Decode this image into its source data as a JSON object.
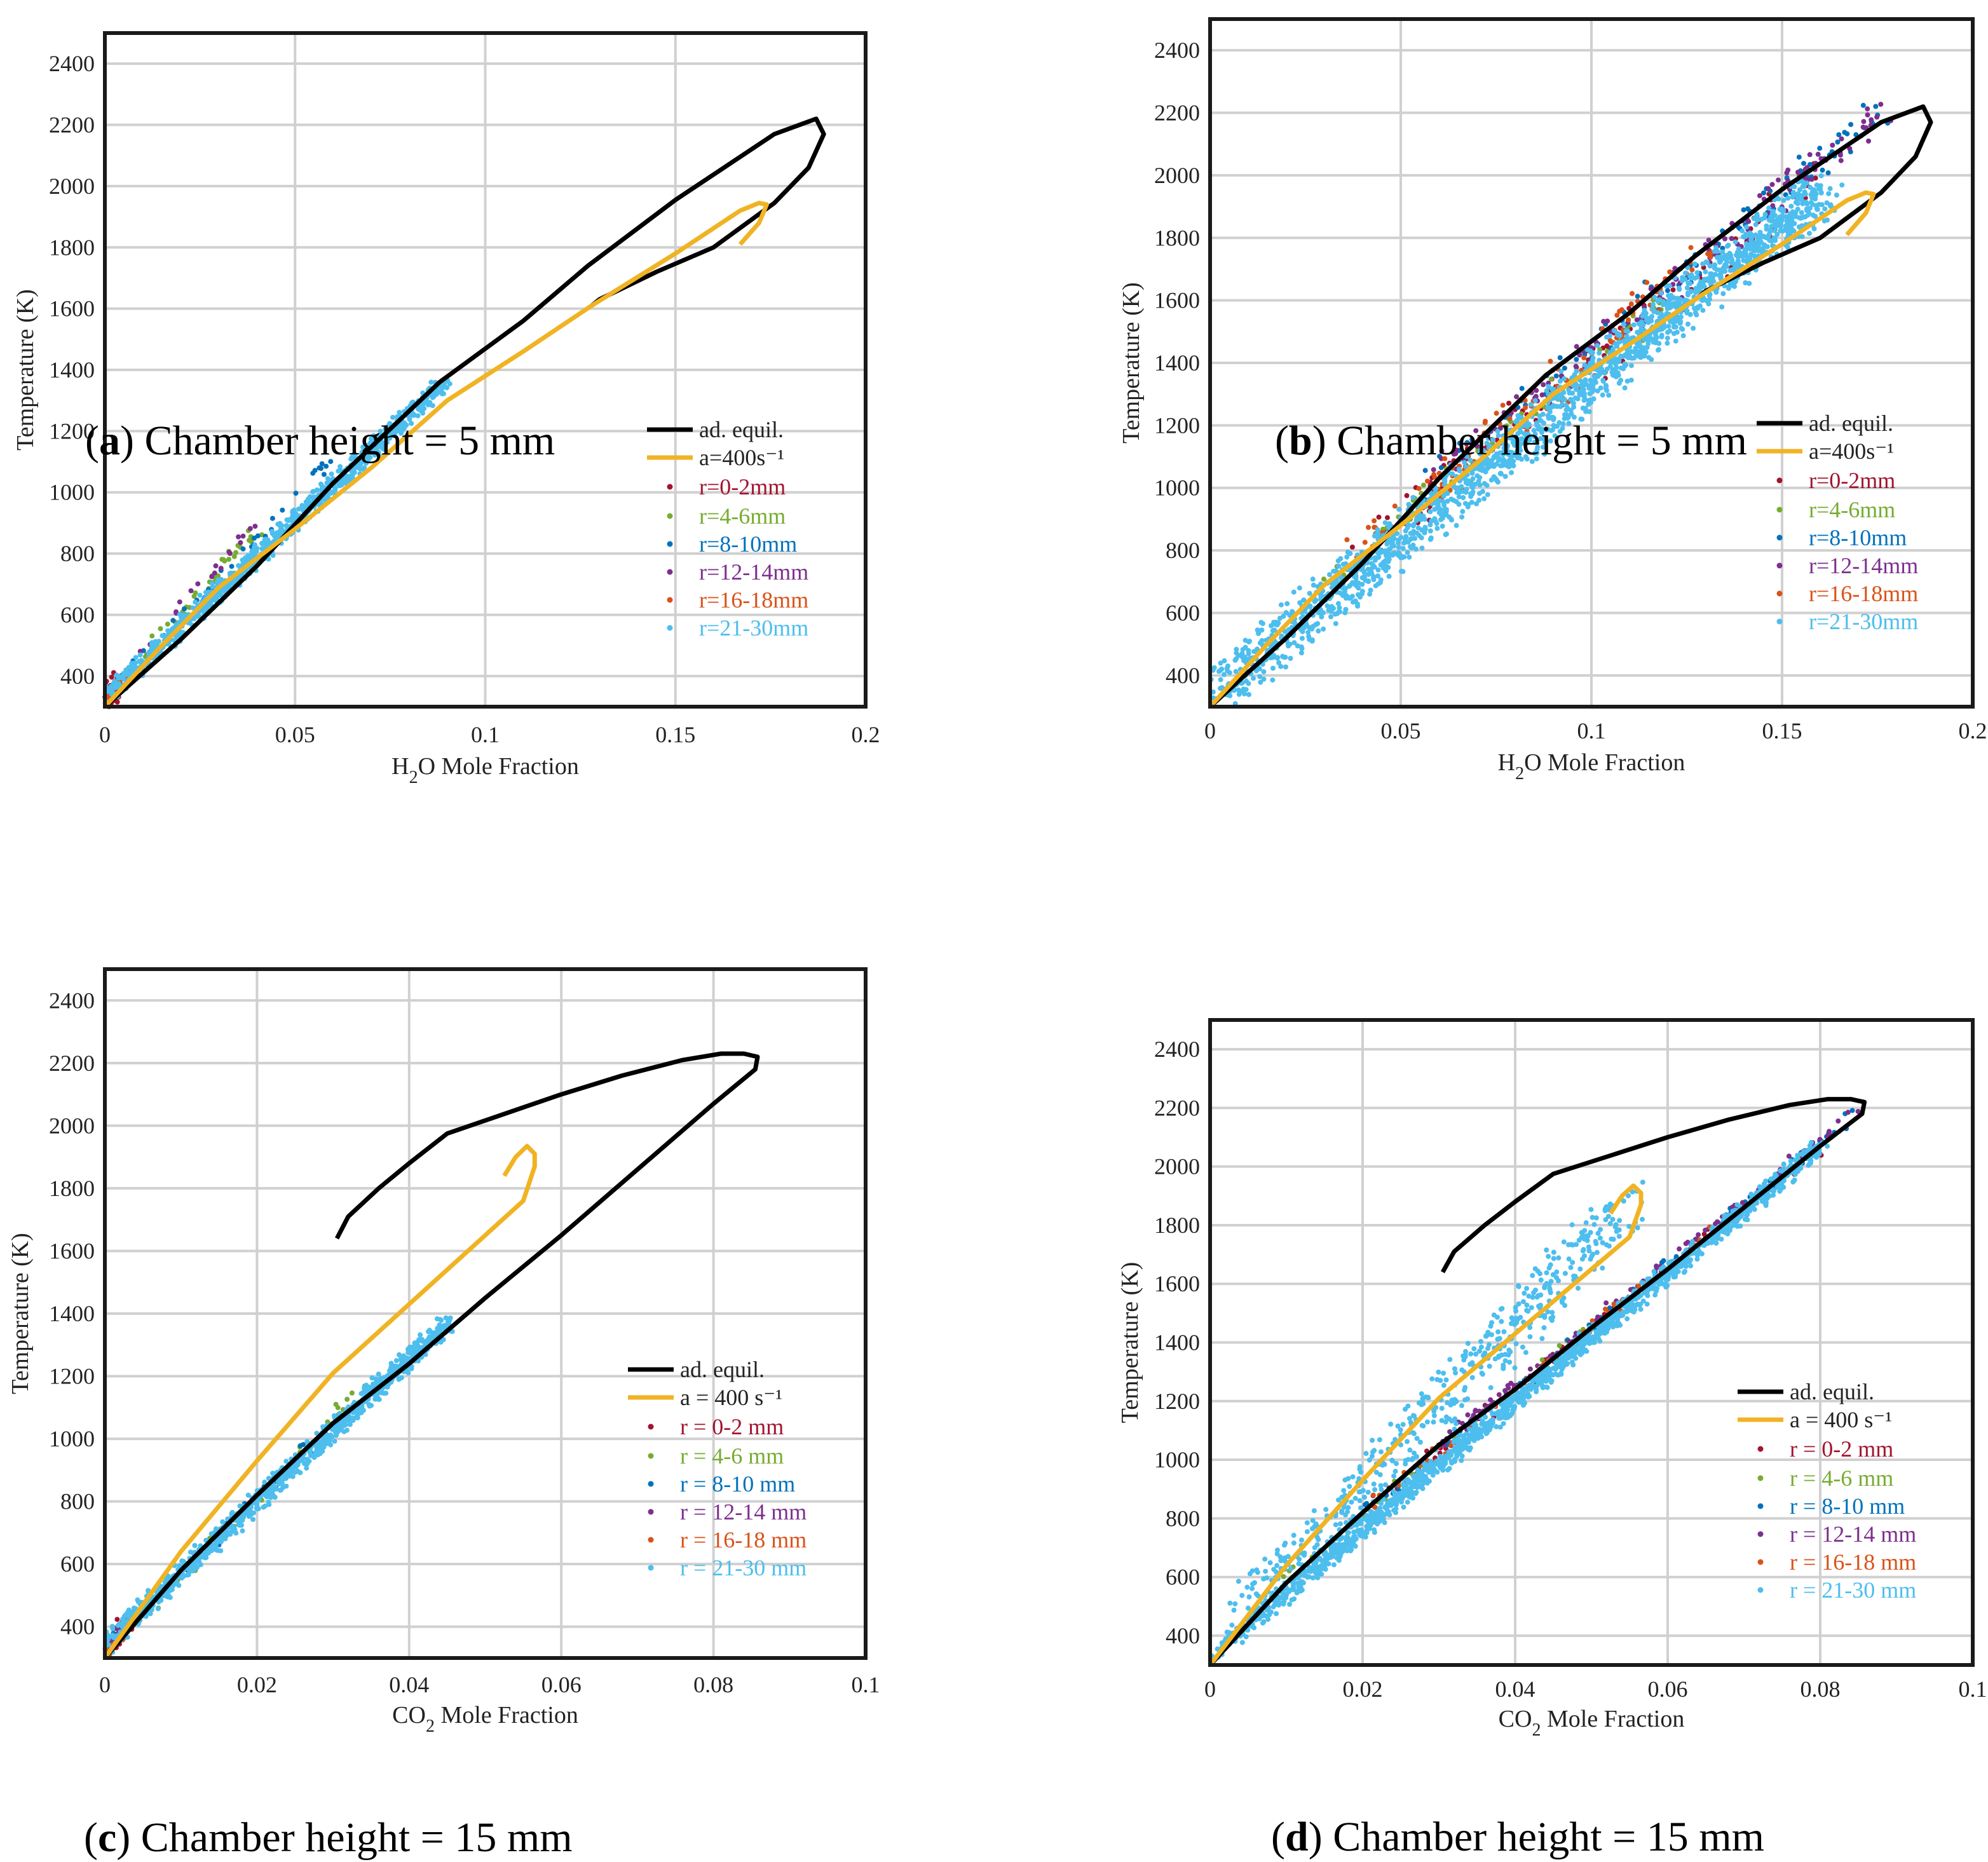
{
  "chart_data": [
    {
      "id": "a",
      "type": "scatter",
      "caption_letter": "a",
      "caption_text": "Chamber height = 5 mm",
      "xlabel_pre": "H",
      "xlabel_sub": "2",
      "xlabel_post": "O Mole Fraction",
      "ylabel": "Temperature (K)",
      "xlim": [
        0,
        0.2
      ],
      "ylim": [
        300,
        2500
      ],
      "xticks": [
        0,
        0.05,
        0.1,
        0.15,
        0.2
      ],
      "xtick_labels": [
        "0",
        "0.05",
        "0.1",
        "0.15",
        "0.2"
      ],
      "yticks": [
        400,
        600,
        800,
        1000,
        1200,
        1400,
        1600,
        1800,
        2000,
        2200,
        2400
      ],
      "ytick_labels": [
        "400",
        "600",
        "800",
        "1000",
        "1200",
        "1400",
        "1600",
        "1800",
        "2000",
        "2200",
        "2400"
      ],
      "legend": [
        "ad. equil.",
        "a=400s⁻¹",
        "r=0-2mm",
        "r=4-6mm",
        "r=8-10mm",
        "r=12-14mm",
        "r=16-18mm",
        "r=21-30mm"
      ],
      "legend_position": "right-middle",
      "lines": [
        {
          "name": "ad. equil.",
          "color": "#000000",
          "x": [
            0,
            0.02,
            0.04,
            0.06,
            0.088,
            0.11,
            0.127,
            0.15,
            0.176,
            0.187,
            0.189,
            0.185,
            0.176,
            0.16,
            0.145,
            0.13,
            0.128
          ],
          "y": [
            300,
            520,
            760,
            1030,
            1360,
            1560,
            1740,
            1955,
            2170,
            2220,
            2170,
            2060,
            1945,
            1800,
            1720,
            1630,
            1610
          ]
        },
        {
          "name": "a=400s⁻¹",
          "color": "#f0b323",
          "x": [
            0,
            0.015,
            0.03,
            0.05,
            0.07,
            0.09,
            0.11,
            0.128,
            0.15,
            0.167,
            0.172,
            0.174,
            0.172,
            0.167
          ],
          "y": [
            300,
            500,
            690,
            880,
            1080,
            1300,
            1460,
            1610,
            1780,
            1920,
            1945,
            1940,
            1880,
            1810
          ]
        }
      ],
      "scatter_clouds": [
        {
          "name": "r=0-2mm",
          "color": "#a2142f",
          "x0": 0,
          "x1": 0.004,
          "y0": 300,
          "y1": 400,
          "slope": 0,
          "spread": 0.002,
          "count": 40
        },
        {
          "name": "r=4-6mm",
          "color": "#77ac30",
          "x0": 0.005,
          "x1": 0.04,
          "y0": 400,
          "y1": 880,
          "slope": 0,
          "spread": 0.0015,
          "count": 40
        },
        {
          "name": "r=8-10mm",
          "color": "#0072bd",
          "x0": 0,
          "x1": 0.06,
          "y0": 330,
          "y1": 1110,
          "slope": 0,
          "spread": 0.0012,
          "count": 40
        },
        {
          "name": "r=12-14mm",
          "color": "#7e2f8e",
          "x0": 0,
          "x1": 0.04,
          "y0": 340,
          "y1": 900,
          "slope": 0,
          "spread": 0.0012,
          "count": 20
        },
        {
          "name": "r=16-18mm",
          "color": "#d95319",
          "x0": 0,
          "x1": 0.006,
          "y0": 320,
          "y1": 400,
          "slope": 0,
          "spread": 0.001,
          "count": 20
        },
        {
          "name": "r=21-30mm",
          "color": "#4dbeee",
          "x0": 0,
          "x1": 0.089,
          "y0": 330,
          "y1": 1355,
          "slope": 0,
          "spread": 0.0022,
          "count": 900
        }
      ]
    },
    {
      "id": "b",
      "type": "scatter",
      "caption_letter": "b",
      "caption_text": "Chamber height = 5 mm",
      "xlabel_pre": "H",
      "xlabel_sub": "2",
      "xlabel_post": "O Mole Fraction",
      "ylabel": "Temperature (K)",
      "xlim": [
        0,
        0.2
      ],
      "ylim": [
        300,
        2500
      ],
      "xticks": [
        0,
        0.05,
        0.1,
        0.15,
        0.2
      ],
      "xtick_labels": [
        "0",
        "0.05",
        "0.1",
        "0.15",
        "0.2"
      ],
      "yticks": [
        400,
        600,
        800,
        1000,
        1200,
        1400,
        1600,
        1800,
        2000,
        2200,
        2400
      ],
      "ytick_labels": [
        "400",
        "600",
        "800",
        "1000",
        "1200",
        "1400",
        "1600",
        "1800",
        "2000",
        "2200",
        "2400"
      ],
      "legend": [
        "ad. equil.",
        "a=400s⁻¹",
        "r=0-2mm",
        "r=4-6mm",
        "r=8-10mm",
        "r=12-14mm",
        "r=16-18mm",
        "r=21-30mm"
      ],
      "legend_position": "right-middle",
      "lines": [
        {
          "name": "ad. equil.",
          "color": "#000000",
          "x": [
            0,
            0.02,
            0.04,
            0.06,
            0.088,
            0.11,
            0.127,
            0.15,
            0.176,
            0.187,
            0.189,
            0.185,
            0.176,
            0.16,
            0.145,
            0.13,
            0.128
          ],
          "y": [
            300,
            520,
            760,
            1030,
            1360,
            1560,
            1740,
            1955,
            2170,
            2220,
            2170,
            2060,
            1945,
            1800,
            1720,
            1630,
            1610
          ]
        },
        {
          "name": "a=400s⁻¹",
          "color": "#f0b323",
          "x": [
            0,
            0.015,
            0.03,
            0.05,
            0.07,
            0.09,
            0.11,
            0.128,
            0.15,
            0.167,
            0.172,
            0.174,
            0.172,
            0.167
          ],
          "y": [
            300,
            500,
            690,
            880,
            1080,
            1300,
            1460,
            1610,
            1780,
            1920,
            1945,
            1940,
            1880,
            1810
          ]
        }
      ],
      "scatter_clouds": [
        {
          "name": "r=0-2mm",
          "color": "#a2142f",
          "x0": 0.04,
          "x1": 0.16,
          "y0": 800,
          "y1": 2000,
          "slope": 0,
          "spread": 0.005,
          "count": 120
        },
        {
          "name": "r=4-6mm",
          "color": "#77ac30",
          "x0": 0.03,
          "x1": 0.12,
          "y0": 700,
          "y1": 1600,
          "slope": 0,
          "spread": 0.004,
          "count": 60
        },
        {
          "name": "r=8-10mm",
          "color": "#0072bd",
          "x0": 0.05,
          "x1": 0.175,
          "y0": 950,
          "y1": 2200,
          "slope": 0,
          "spread": 0.004,
          "count": 110
        },
        {
          "name": "r=12-14mm",
          "color": "#7e2f8e",
          "x0": 0.06,
          "x1": 0.178,
          "y0": 1050,
          "y1": 2220,
          "slope": 0,
          "spread": 0.004,
          "count": 150
        },
        {
          "name": "r=16-18mm",
          "color": "#d95319",
          "x0": 0.04,
          "x1": 0.13,
          "y0": 800,
          "y1": 1750,
          "slope": 0,
          "spread": 0.005,
          "count": 110
        },
        {
          "name": "r=21-30mm",
          "color": "#4dbeee",
          "x0": 0,
          "x1": 0.16,
          "y0": 330,
          "y1": 1950,
          "slope": 0,
          "spread": 0.006,
          "count": 1800
        }
      ]
    },
    {
      "id": "c",
      "type": "scatter",
      "caption_letter": "c",
      "caption_text": "Chamber height = 15 mm",
      "xlabel_pre": "CO",
      "xlabel_sub": "2",
      "xlabel_post": " Mole Fraction",
      "ylabel": "Temperature (K)",
      "xlim": [
        0,
        0.1
      ],
      "ylim": [
        300,
        2500
      ],
      "xticks": [
        0,
        0.02,
        0.04,
        0.06,
        0.08,
        0.1
      ],
      "xtick_labels": [
        "0",
        "0.02",
        "0.04",
        "0.06",
        "0.08",
        "0.1"
      ],
      "yticks": [
        400,
        600,
        800,
        1000,
        1200,
        1400,
        1600,
        1800,
        2000,
        2200,
        2400
      ],
      "ytick_labels": [
        "400",
        "600",
        "800",
        "1000",
        "1200",
        "1400",
        "1600",
        "1800",
        "2000",
        "2200",
        "2400"
      ],
      "legend": [
        "ad. equil.",
        "a = 400 s⁻¹",
        "r = 0-2 mm",
        "r = 4-6 mm",
        "r = 8-10 mm",
        "r = 12-14 mm",
        "r = 16-18 mm",
        "r = 21-30 mm"
      ],
      "legend_position": "right-middle",
      "lines": [
        {
          "name": "ad. equil.",
          "color": "#000000",
          "x": [
            0,
            0.01,
            0.02,
            0.03,
            0.04,
            0.05,
            0.06,
            0.07,
            0.08,
            0.0855,
            0.0858,
            0.084,
            0.081,
            0.076,
            0.068,
            0.06,
            0.054,
            0.045,
            0.04,
            0.036,
            0.032,
            0.0305
          ],
          "y": [
            300,
            580,
            820,
            1050,
            1240,
            1450,
            1650,
            1860,
            2070,
            2180,
            2220,
            2230,
            2230,
            2210,
            2160,
            2100,
            2050,
            1975,
            1880,
            1800,
            1710,
            1640
          ]
        },
        {
          "name": "a = 400 s⁻¹",
          "color": "#f0b323",
          "x": [
            0,
            0.01,
            0.02,
            0.03,
            0.04,
            0.05,
            0.055,
            0.0565,
            0.0565,
            0.0555,
            0.054,
            0.0525
          ],
          "y": [
            300,
            640,
            930,
            1210,
            1430,
            1650,
            1760,
            1870,
            1910,
            1935,
            1900,
            1840
          ]
        }
      ],
      "scatter_clouds": [
        {
          "name": "r = 0-2 mm",
          "color": "#a2142f",
          "x0": 0,
          "x1": 0.003,
          "y0": 320,
          "y1": 420,
          "slope": 0,
          "spread": 0.001,
          "count": 30
        },
        {
          "name": "r = 4-6 mm",
          "color": "#77ac30",
          "x0": 0.005,
          "x1": 0.035,
          "y0": 430,
          "y1": 1200,
          "slope": 0,
          "spread": 0.0008,
          "count": 30
        },
        {
          "name": "r = 8-10 mm",
          "color": "#0072bd",
          "x0": 0,
          "x1": 0.03,
          "y0": 330,
          "y1": 1050,
          "slope": 0,
          "spread": 0.0007,
          "count": 30
        },
        {
          "name": "r = 12-14 mm",
          "color": "#7e2f8e",
          "x0": 0,
          "x1": 0.004,
          "y0": 320,
          "y1": 430,
          "slope": 0,
          "spread": 0.0006,
          "count": 20
        },
        {
          "name": "r = 16-18 mm",
          "color": "#d95319",
          "x0": 0,
          "x1": 0.004,
          "y0": 320,
          "y1": 430,
          "slope": 0,
          "spread": 0.0006,
          "count": 20
        },
        {
          "name": "r = 21-30 mm",
          "color": "#4dbeee",
          "x0": 0,
          "x1": 0.045,
          "y0": 340,
          "y1": 1370,
          "slope": 0,
          "spread": 0.0012,
          "count": 900
        }
      ]
    },
    {
      "id": "d",
      "type": "scatter",
      "caption_letter": "d",
      "caption_text": "Chamber height = 15 mm",
      "xlabel_pre": "CO",
      "xlabel_sub": "2",
      "xlabel_post": " Mole Fraction",
      "ylabel": "Temperature (K)",
      "xlim": [
        0,
        0.1
      ],
      "ylim": [
        300,
        2500
      ],
      "xticks": [
        0,
        0.02,
        0.04,
        0.06,
        0.08,
        0.1
      ],
      "xtick_labels": [
        "0",
        "0.02",
        "0.04",
        "0.06",
        "0.08",
        "0.1"
      ],
      "yticks": [
        400,
        600,
        800,
        1000,
        1200,
        1400,
        1600,
        1800,
        2000,
        2200,
        2400
      ],
      "ytick_labels": [
        "400",
        "600",
        "800",
        "1000",
        "1200",
        "1400",
        "1600",
        "1800",
        "2000",
        "2200",
        "2400"
      ],
      "legend": [
        "ad. equil.",
        "a = 400 s⁻¹",
        "r = 0-2 mm",
        "r = 4-6 mm",
        "r = 8-10 mm",
        "r = 12-14 mm",
        "r = 16-18 mm",
        "r = 21-30 mm"
      ],
      "legend_position": "right-middle",
      "lines": [
        {
          "name": "ad. equil.",
          "color": "#000000",
          "x": [
            0,
            0.01,
            0.02,
            0.03,
            0.04,
            0.05,
            0.06,
            0.07,
            0.08,
            0.0855,
            0.0858,
            0.084,
            0.081,
            0.076,
            0.068,
            0.06,
            0.054,
            0.045,
            0.04,
            0.036,
            0.032,
            0.0305
          ],
          "y": [
            300,
            580,
            820,
            1050,
            1240,
            1450,
            1650,
            1860,
            2070,
            2180,
            2220,
            2230,
            2230,
            2210,
            2160,
            2100,
            2050,
            1975,
            1880,
            1800,
            1710,
            1640
          ]
        },
        {
          "name": "a = 400 s⁻¹",
          "color": "#f0b323",
          "x": [
            0,
            0.01,
            0.02,
            0.03,
            0.04,
            0.05,
            0.055,
            0.0565,
            0.0565,
            0.0555,
            0.054,
            0.0525
          ],
          "y": [
            300,
            640,
            930,
            1210,
            1430,
            1650,
            1760,
            1870,
            1910,
            1935,
            1900,
            1840
          ]
        }
      ],
      "scatter_clouds": [
        {
          "name": "r = 0-2 mm",
          "color": "#a2142f",
          "x0": 0.02,
          "x1": 0.08,
          "y0": 820,
          "y1": 2070,
          "slope": 0,
          "spread": 0.001,
          "count": 80
        },
        {
          "name": "r = 4-6 mm",
          "color": "#77ac30",
          "x0": 0.01,
          "x1": 0.05,
          "y0": 600,
          "y1": 1460,
          "slope": 0,
          "spread": 0.0008,
          "count": 40
        },
        {
          "name": "r = 8-10 mm",
          "color": "#0072bd",
          "x0": 0.02,
          "x1": 0.085,
          "y0": 820,
          "y1": 2190,
          "slope": 0,
          "spread": 0.0008,
          "count": 80
        },
        {
          "name": "r = 12-14 mm",
          "color": "#7e2f8e",
          "x0": 0.03,
          "x1": 0.085,
          "y0": 1050,
          "y1": 2200,
          "slope": 0,
          "spread": 0.0008,
          "count": 110
        },
        {
          "name": "r = 16-18 mm",
          "color": "#d95319",
          "x0": 0.02,
          "x1": 0.07,
          "y0": 820,
          "y1": 1860,
          "slope": 0,
          "spread": 0.0009,
          "count": 70
        },
        {
          "name": "r = 21-30 mm",
          "color": "#4dbeee",
          "x0": 0,
          "x1": 0.08,
          "y0": 330,
          "y1": 2070,
          "slope": 0,
          "spread": 0.0012,
          "count": 1400
        },
        {
          "name": "r = 21-30 mm",
          "color": "#4dbeee",
          "x0": 0.005,
          "x1": 0.055,
          "y0": 480,
          "y1": 1880,
          "slope": 0,
          "spread": 0.003,
          "count": 500
        }
      ]
    }
  ]
}
